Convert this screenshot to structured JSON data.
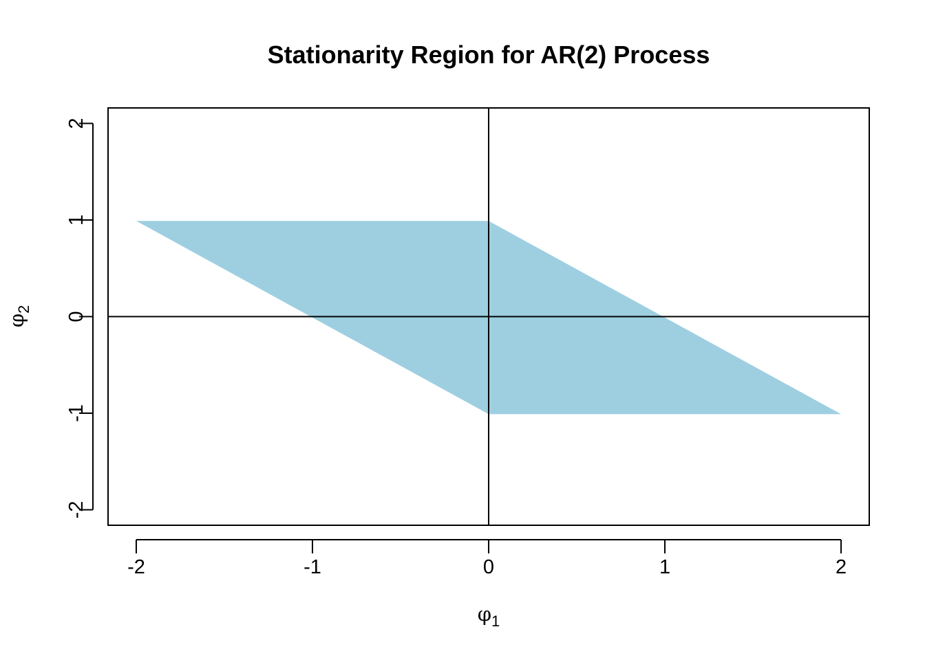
{
  "chart_data": {
    "type": "area",
    "title": "Stationarity Region for AR(2) Process",
    "xlabel": {
      "symbol": "φ",
      "subscript": "1"
    },
    "ylabel": {
      "symbol": "φ",
      "subscript": "2"
    },
    "xlim": [
      -2.16,
      2.16
    ],
    "ylim": [
      -2.16,
      2.16
    ],
    "x_ticks": [
      -2,
      -1,
      0,
      1,
      2
    ],
    "x_tick_labels": [
      "-2",
      "-1",
      "0",
      "1",
      "2"
    ],
    "y_ticks": [
      -2,
      -1,
      0,
      1,
      2
    ],
    "y_tick_labels": [
      "-2",
      "-1",
      "0",
      "1",
      "2"
    ],
    "region": {
      "name": "stationarity-region",
      "color": "#9ecfe1",
      "points": [
        [
          -2,
          0.99
        ],
        [
          0,
          0.99
        ],
        [
          2,
          -1.01
        ],
        [
          0,
          -1.01
        ]
      ]
    },
    "reference_lines": [
      {
        "orientation": "vertical",
        "value": 0
      },
      {
        "orientation": "horizontal",
        "value": 0
      }
    ],
    "grid": false,
    "legend": "none"
  }
}
